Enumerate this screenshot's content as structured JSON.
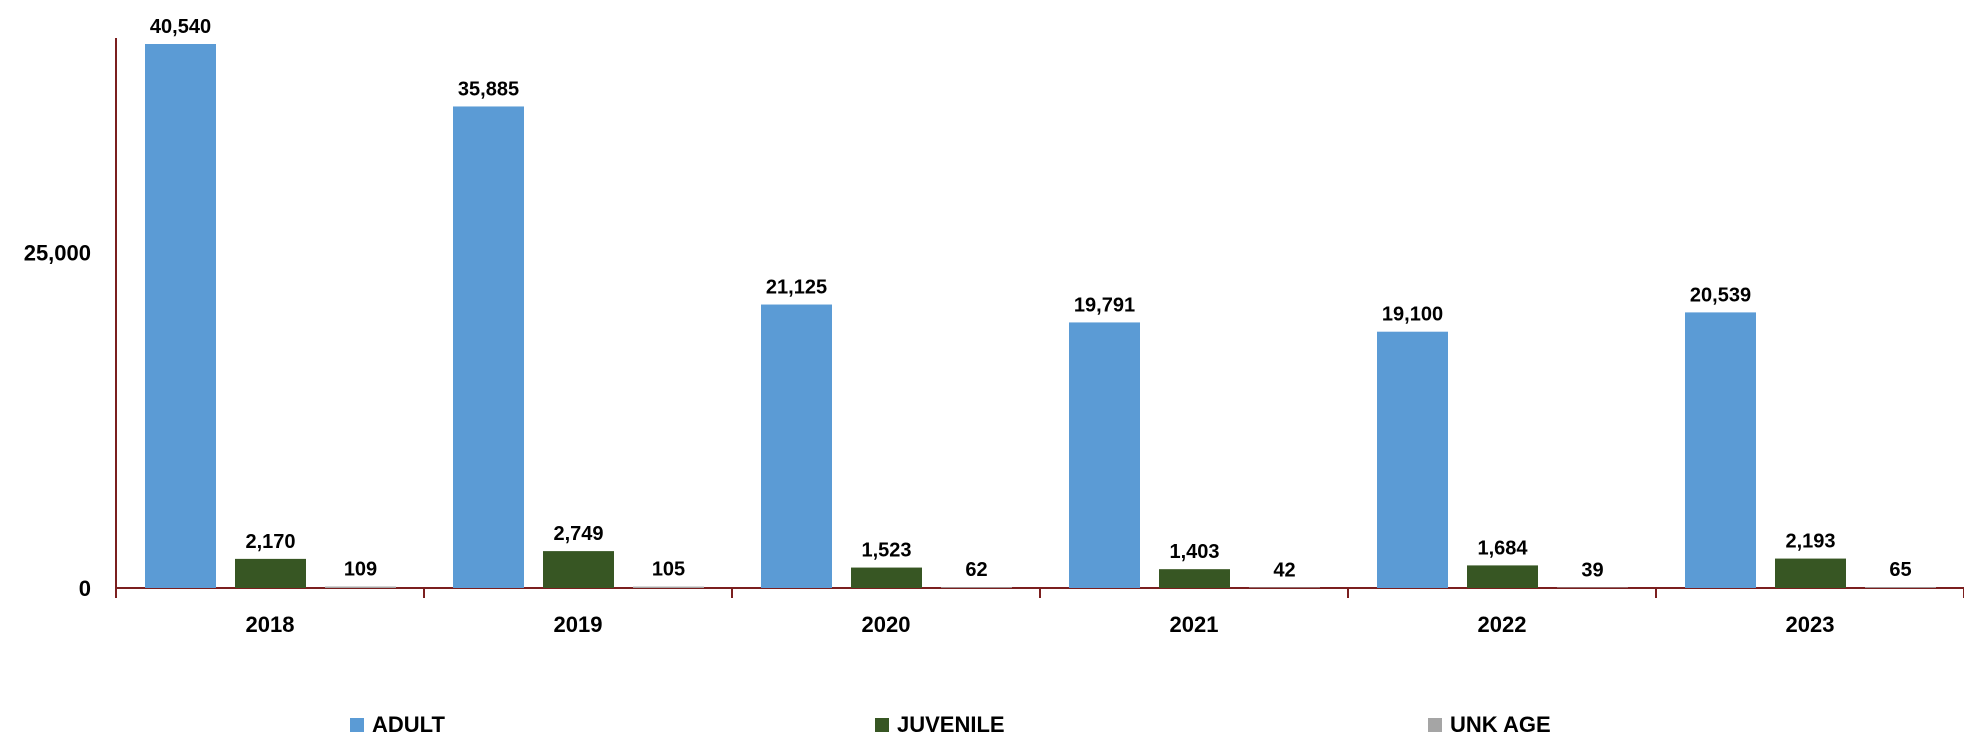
{
  "chart_data": {
    "type": "bar",
    "categories": [
      "2018",
      "2019",
      "2020",
      "2021",
      "2022",
      "2023"
    ],
    "series": [
      {
        "name": "ADULT",
        "color": "#5B9BD5",
        "values": [
          40540,
          35885,
          21125,
          19791,
          19100,
          20539
        ],
        "labels": [
          "40,540",
          "35,885",
          "21,125",
          "19,791",
          "19,100",
          "20,539"
        ]
      },
      {
        "name": "JUVENILE",
        "color": "#375623",
        "values": [
          2170,
          2749,
          1523,
          1403,
          1684,
          2193
        ],
        "labels": [
          "2,170",
          "2,749",
          "1,523",
          "1,403",
          "1,684",
          "2,193"
        ]
      },
      {
        "name": "UNK AGE",
        "color": "#A5A5A5",
        "values": [
          109,
          105,
          62,
          42,
          39,
          65
        ],
        "labels": [
          "109",
          "105",
          "62",
          "42",
          "39",
          "65"
        ]
      }
    ],
    "yticks": [
      0,
      25000
    ],
    "ytick_labels": [
      "0",
      "25,000"
    ],
    "ylim": [
      0,
      40540
    ],
    "axis_color": "#7B1F1F",
    "grid": false,
    "legend_position": "bottom"
  }
}
